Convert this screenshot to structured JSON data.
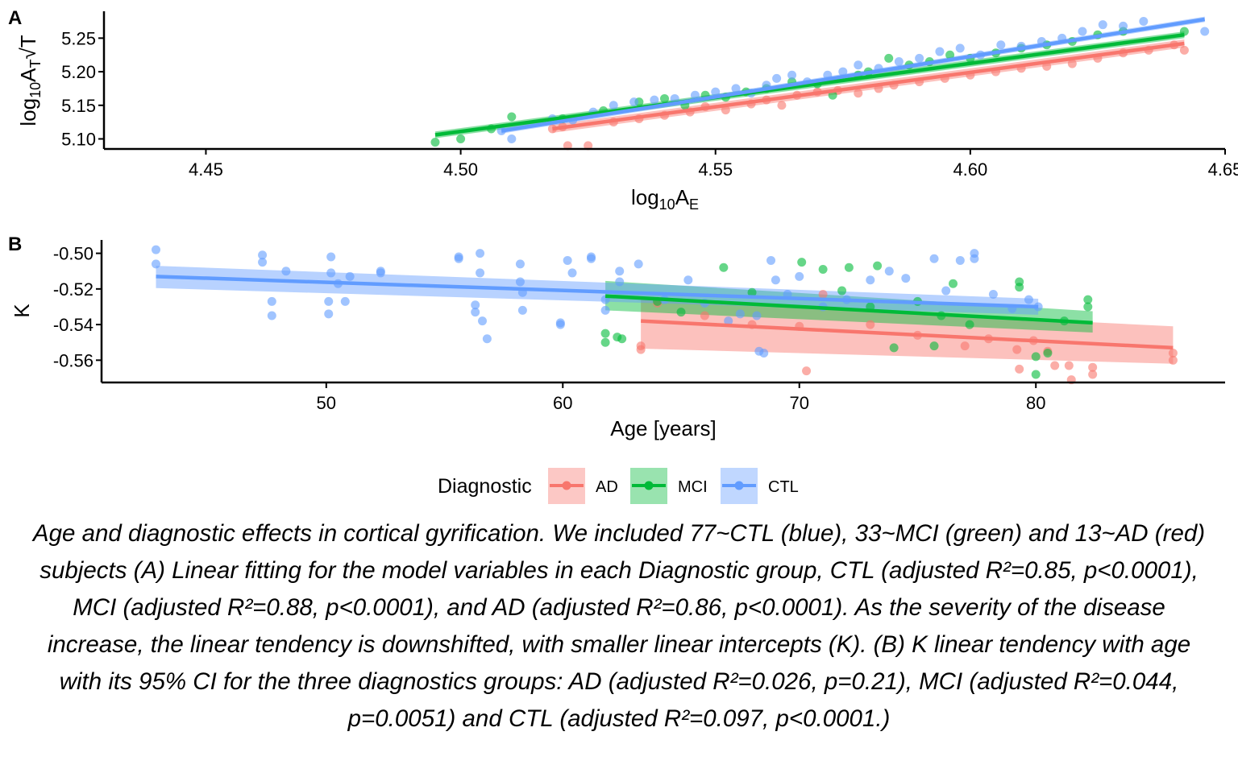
{
  "colors": {
    "AD": "#F8766D",
    "MCI": "#00BA38",
    "CTL": "#619CFF"
  },
  "legend": {
    "title": "Diagnostic",
    "items": [
      {
        "label": "AD",
        "color": "#F8766D"
      },
      {
        "label": "MCI",
        "color": "#00BA38"
      },
      {
        "label": "CTL",
        "color": "#619CFF"
      }
    ]
  },
  "caption": "Age and diagnostic effects in cortical gyrification. We included 77~CTL (blue), 33~MCI (green) and 13~AD (red) subjects (A) Linear fitting for the model variables in each Diagnostic group, CTL (adjusted R²=0.85, p<0.0001), MCI (adjusted R²=0.88, p<0.0001), and AD (adjusted R²=0.86, p<0.0001). As the severity of the disease increase, the linear tendency is downshifted, with smaller linear intercepts (K). (B) K linear tendency with age with its 95% CI for the three diagnostics groups: AD (adjusted R²=0.026, p=0.21), MCI (adjusted R²=0.044, p=0.0051) and CTL (adjusted R²=0.097, p<0.0001.)",
  "chart_data": [
    {
      "panel": "A",
      "type": "scatter",
      "xlabel": "log10AE",
      "ylabel": "log10AT√T",
      "xlim": [
        4.43,
        4.65
      ],
      "ylim": [
        5.085,
        5.29
      ],
      "xticks": [
        "4.45",
        "4.50",
        "4.55",
        "4.60",
        "4.65"
      ],
      "yticks": [
        "5.10",
        "5.15",
        "5.20",
        "5.25"
      ],
      "grid": false,
      "series": [
        {
          "name": "AD",
          "fit": {
            "x": [
              4.518,
              4.642
            ],
            "y": [
              5.115,
              5.242
            ]
          },
          "band": 0.006,
          "points": [
            [
              4.518,
              5.115
            ],
            [
              4.52,
              5.118
            ],
            [
              4.521,
              5.09
            ],
            [
              4.525,
              5.09
            ],
            [
              4.53,
              5.125
            ],
            [
              4.535,
              5.13
            ],
            [
              4.54,
              5.135
            ],
            [
              4.545,
              5.14
            ],
            [
              4.548,
              5.148
            ],
            [
              4.552,
              5.143
            ],
            [
              4.557,
              5.152
            ],
            [
              4.56,
              5.158
            ],
            [
              4.563,
              5.15
            ],
            [
              4.566,
              5.165
            ],
            [
              4.57,
              5.17
            ],
            [
              4.574,
              5.172
            ],
            [
              4.578,
              5.168
            ],
            [
              4.582,
              5.175
            ],
            [
              4.585,
              5.18
            ],
            [
              4.59,
              5.185
            ],
            [
              4.595,
              5.19
            ],
            [
              4.6,
              5.195
            ],
            [
              4.605,
              5.2
            ],
            [
              4.61,
              5.205
            ],
            [
              4.615,
              5.208
            ],
            [
              4.62,
              5.212
            ],
            [
              4.625,
              5.22
            ],
            [
              4.63,
              5.228
            ],
            [
              4.635,
              5.232
            ],
            [
              4.64,
              5.24
            ],
            [
              4.642,
              5.232
            ]
          ]
        },
        {
          "name": "MCI",
          "fit": {
            "x": [
              4.495,
              4.642
            ],
            "y": [
              5.106,
              5.255
            ]
          },
          "band": 0.005,
          "points": [
            [
              4.495,
              5.095
            ],
            [
              4.5,
              5.1
            ],
            [
              4.506,
              5.115
            ],
            [
              4.51,
              5.133
            ],
            [
              4.52,
              5.13
            ],
            [
              4.528,
              5.142
            ],
            [
              4.535,
              5.155
            ],
            [
              4.54,
              5.16
            ],
            [
              4.544,
              5.15
            ],
            [
              4.548,
              5.165
            ],
            [
              4.552,
              5.162
            ],
            [
              4.556,
              5.17
            ],
            [
              4.56,
              5.175
            ],
            [
              4.565,
              5.185
            ],
            [
              4.57,
              5.182
            ],
            [
              4.573,
              5.165
            ],
            [
              4.578,
              5.195
            ],
            [
              4.58,
              5.2
            ],
            [
              4.584,
              5.22
            ],
            [
              4.588,
              5.21
            ],
            [
              4.592,
              5.215
            ],
            [
              4.596,
              5.225
            ],
            [
              4.6,
              5.22
            ],
            [
              4.605,
              5.228
            ],
            [
              4.61,
              5.235
            ],
            [
              4.615,
              5.24
            ],
            [
              4.62,
              5.245
            ],
            [
              4.625,
              5.255
            ],
            [
              4.63,
              5.26
            ],
            [
              4.642,
              5.26
            ]
          ]
        },
        {
          "name": "CTL",
          "fit": {
            "x": [
              4.508,
              4.646
            ],
            "y": [
              5.112,
              5.278
            ]
          },
          "band": 0.004,
          "points": [
            [
              4.508,
              5.112
            ],
            [
              4.51,
              5.1
            ],
            [
              4.518,
              5.13
            ],
            [
              4.522,
              5.128
            ],
            [
              4.526,
              5.14
            ],
            [
              4.53,
              5.15
            ],
            [
              4.534,
              5.155
            ],
            [
              4.538,
              5.158
            ],
            [
              4.542,
              5.16
            ],
            [
              4.546,
              5.165
            ],
            [
              4.55,
              5.17
            ],
            [
              4.554,
              5.175
            ],
            [
              4.557,
              5.168
            ],
            [
              4.56,
              5.18
            ],
            [
              4.562,
              5.19
            ],
            [
              4.565,
              5.195
            ],
            [
              4.568,
              5.185
            ],
            [
              4.572,
              5.195
            ],
            [
              4.575,
              5.2
            ],
            [
              4.578,
              5.21
            ],
            [
              4.582,
              5.205
            ],
            [
              4.586,
              5.215
            ],
            [
              4.59,
              5.22
            ],
            [
              4.594,
              5.23
            ],
            [
              4.598,
              5.235
            ],
            [
              4.602,
              5.225
            ],
            [
              4.606,
              5.24
            ],
            [
              4.61,
              5.238
            ],
            [
              4.614,
              5.245
            ],
            [
              4.618,
              5.25
            ],
            [
              4.622,
              5.26
            ],
            [
              4.626,
              5.27
            ],
            [
              4.63,
              5.268
            ],
            [
              4.634,
              5.275
            ],
            [
              4.646,
              5.26
            ]
          ]
        }
      ]
    },
    {
      "panel": "B",
      "type": "scatter",
      "xlabel": "Age [years]",
      "ylabel": "K",
      "xlim": [
        40.5,
        88
      ],
      "ylim": [
        -0.5725,
        -0.4925
      ],
      "xticks": [
        "50",
        "60",
        "70",
        "80"
      ],
      "yticks": [
        "-0.50",
        "-0.52",
        "-0.54",
        "-0.56"
      ],
      "grid": false,
      "series": [
        {
          "name": "AD",
          "fit": {
            "x": [
              63.3,
              85.8
            ],
            "y": [
              -0.538,
              -0.553
            ]
          },
          "band_lower": [
            -0.5535,
            -0.562
          ],
          "band_upper": [
            -0.526,
            -0.541
          ],
          "points": [
            [
              63.3,
              -0.552
            ],
            [
              63.3,
              -0.554
            ],
            [
              64.0,
              -0.528
            ],
            [
              66.0,
              -0.535
            ],
            [
              68.0,
              -0.54
            ],
            [
              70.0,
              -0.541
            ],
            [
              70.3,
              -0.566
            ],
            [
              71.0,
              -0.523
            ],
            [
              73.0,
              -0.54
            ],
            [
              75.0,
              -0.546
            ],
            [
              77.0,
              -0.552
            ],
            [
              78.0,
              -0.548
            ],
            [
              79.2,
              -0.554
            ],
            [
              79.3,
              -0.565
            ],
            [
              79.9,
              -0.549
            ],
            [
              80.5,
              -0.555
            ],
            [
              80.8,
              -0.563
            ],
            [
              81.4,
              -0.563
            ],
            [
              81.5,
              -0.571
            ],
            [
              82.4,
              -0.568
            ],
            [
              82.4,
              -0.564
            ],
            [
              85.8,
              -0.556
            ],
            [
              85.8,
              -0.56
            ]
          ]
        },
        {
          "name": "MCI",
          "fit": {
            "x": [
              61.8,
              82.4
            ],
            "y": [
              -0.524,
              -0.539
            ]
          },
          "band_lower": [
            -0.532,
            -0.5445
          ],
          "band_upper": [
            -0.5155,
            -0.5325
          ],
          "points": [
            [
              61.8,
              -0.545
            ],
            [
              61.8,
              -0.55
            ],
            [
              62.3,
              -0.547
            ],
            [
              62.5,
              -0.548
            ],
            [
              64.0,
              -0.527
            ],
            [
              65.0,
              -0.533
            ],
            [
              66.8,
              -0.508
            ],
            [
              68.0,
              -0.522
            ],
            [
              70.1,
              -0.505
            ],
            [
              71.0,
              -0.509
            ],
            [
              71.8,
              -0.521
            ],
            [
              72.1,
              -0.508
            ],
            [
              73.0,
              -0.53
            ],
            [
              73.3,
              -0.507
            ],
            [
              74.0,
              -0.553
            ],
            [
              75.0,
              -0.527
            ],
            [
              75.7,
              -0.552
            ],
            [
              76.0,
              -0.535
            ],
            [
              76.5,
              -0.517
            ],
            [
              77.2,
              -0.54
            ],
            [
              79.3,
              -0.516
            ],
            [
              79.3,
              -0.519
            ],
            [
              80.0,
              -0.558
            ],
            [
              80.0,
              -0.568
            ],
            [
              80.5,
              -0.556
            ],
            [
              81.2,
              -0.538
            ],
            [
              82.2,
              -0.526
            ],
            [
              82.2,
              -0.53
            ]
          ]
        },
        {
          "name": "CTL",
          "fit": {
            "x": [
              42.8,
              80.1
            ],
            "y": [
              -0.513,
              -0.53
            ]
          },
          "band_lower": [
            -0.5195,
            -0.5345
          ],
          "band_upper": [
            -0.507,
            -0.5255
          ],
          "points": [
            [
              42.8,
              -0.498
            ],
            [
              42.8,
              -0.506
            ],
            [
              47.3,
              -0.501
            ],
            [
              47.3,
              -0.505
            ],
            [
              47.7,
              -0.527
            ],
            [
              47.7,
              -0.535
            ],
            [
              48.3,
              -0.51
            ],
            [
              50.1,
              -0.527
            ],
            [
              50.1,
              -0.534
            ],
            [
              50.2,
              -0.502
            ],
            [
              50.2,
              -0.511
            ],
            [
              50.5,
              -0.517
            ],
            [
              50.8,
              -0.527
            ],
            [
              51.0,
              -0.513
            ],
            [
              52.3,
              -0.51
            ],
            [
              52.3,
              -0.511
            ],
            [
              55.6,
              -0.502
            ],
            [
              55.6,
              -0.503
            ],
            [
              56.3,
              -0.529
            ],
            [
              56.3,
              -0.533
            ],
            [
              56.5,
              -0.5
            ],
            [
              56.5,
              -0.511
            ],
            [
              56.6,
              -0.538
            ],
            [
              56.8,
              -0.548
            ],
            [
              58.2,
              -0.506
            ],
            [
              58.2,
              -0.516
            ],
            [
              58.3,
              -0.522
            ],
            [
              58.3,
              -0.532
            ],
            [
              59.9,
              -0.539
            ],
            [
              59.9,
              -0.54
            ],
            [
              60.2,
              -0.504
            ],
            [
              60.4,
              -0.511
            ],
            [
              61.2,
              -0.502
            ],
            [
              61.2,
              -0.503
            ],
            [
              61.8,
              -0.526
            ],
            [
              61.8,
              -0.532
            ],
            [
              62.4,
              -0.51
            ],
            [
              62.4,
              -0.516
            ],
            [
              63.2,
              -0.506
            ],
            [
              64.3,
              -0.526
            ],
            [
              65.3,
              -0.515
            ],
            [
              66.0,
              -0.528
            ],
            [
              67.0,
              -0.538
            ],
            [
              67.5,
              -0.534
            ],
            [
              68.2,
              -0.535
            ],
            [
              68.3,
              -0.555
            ],
            [
              68.5,
              -0.556
            ],
            [
              68.8,
              -0.504
            ],
            [
              69.0,
              -0.515
            ],
            [
              69.5,
              -0.523
            ],
            [
              70.0,
              -0.513
            ],
            [
              71.0,
              -0.53
            ],
            [
              72.0,
              -0.526
            ],
            [
              73.0,
              -0.515
            ],
            [
              73.8,
              -0.51
            ],
            [
              74.5,
              -0.514
            ],
            [
              75.7,
              -0.503
            ],
            [
              76.2,
              -0.521
            ],
            [
              76.8,
              -0.504
            ],
            [
              77.4,
              -0.5
            ],
            [
              77.4,
              -0.503
            ],
            [
              78.2,
              -0.523
            ],
            [
              79.0,
              -0.531
            ],
            [
              79.7,
              -0.526
            ],
            [
              80.1,
              -0.53
            ]
          ]
        }
      ]
    }
  ]
}
